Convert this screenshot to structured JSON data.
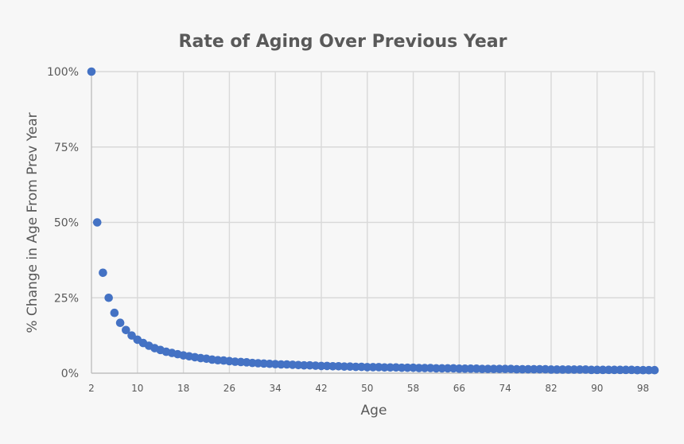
{
  "chart_data": {
    "type": "scatter",
    "title": "Rate of Aging Over Previous Year",
    "xlabel": "Age",
    "ylabel": "% Change in Age From Prev Year",
    "xlim": [
      2,
      100
    ],
    "ylim": [
      0,
      100
    ],
    "x_ticks": [
      "2",
      "10",
      "18",
      "26",
      "34",
      "42",
      "50",
      "58",
      "66",
      "74",
      "82",
      "90",
      "98"
    ],
    "y_ticks": [
      "0%",
      "25%",
      "50%",
      "75%",
      "100%"
    ],
    "grid": true,
    "marker_color": "#4472c4",
    "series": [
      {
        "x": [
          2,
          3,
          4,
          5,
          6,
          7,
          8,
          9,
          10,
          11,
          12,
          13,
          14,
          15,
          16,
          17,
          18,
          19,
          20,
          21,
          22,
          23,
          24,
          25,
          26,
          27,
          28,
          29,
          30,
          31,
          32,
          33,
          34,
          35,
          36,
          37,
          38,
          39,
          40,
          41,
          42,
          43,
          44,
          45,
          46,
          47,
          48,
          49,
          50,
          51,
          52,
          53,
          54,
          55,
          56,
          57,
          58,
          59,
          60,
          61,
          62,
          63,
          64,
          65,
          66,
          67,
          68,
          69,
          70,
          71,
          72,
          73,
          74,
          75,
          76,
          77,
          78,
          79,
          80,
          81,
          82,
          83,
          84,
          85,
          86,
          87,
          88,
          89,
          90,
          91,
          92,
          93,
          94,
          95,
          96,
          97,
          98,
          99,
          100
        ],
        "y": [
          100,
          50,
          33.3,
          25,
          20,
          16.7,
          14.3,
          12.5,
          11.1,
          10,
          9.1,
          8.3,
          7.7,
          7.1,
          6.7,
          6.3,
          5.9,
          5.6,
          5.3,
          5,
          4.8,
          4.5,
          4.3,
          4.2,
          4,
          3.8,
          3.7,
          3.6,
          3.4,
          3.3,
          3.2,
          3.1,
          3,
          2.9,
          2.9,
          2.8,
          2.7,
          2.6,
          2.6,
          2.5,
          2.4,
          2.4,
          2.3,
          2.3,
          2.2,
          2.2,
          2.1,
          2.1,
          2,
          2,
          2,
          1.9,
          1.9,
          1.9,
          1.8,
          1.8,
          1.8,
          1.7,
          1.7,
          1.7,
          1.6,
          1.6,
          1.6,
          1.6,
          1.5,
          1.5,
          1.5,
          1.5,
          1.4,
          1.4,
          1.4,
          1.4,
          1.4,
          1.4,
          1.3,
          1.3,
          1.3,
          1.3,
          1.3,
          1.3,
          1.2,
          1.2,
          1.2,
          1.2,
          1.2,
          1.2,
          1.2,
          1.1,
          1.1,
          1.1,
          1.1,
          1.1,
          1.1,
          1.1,
          1.1,
          1,
          1,
          1,
          1
        ]
      }
    ]
  }
}
